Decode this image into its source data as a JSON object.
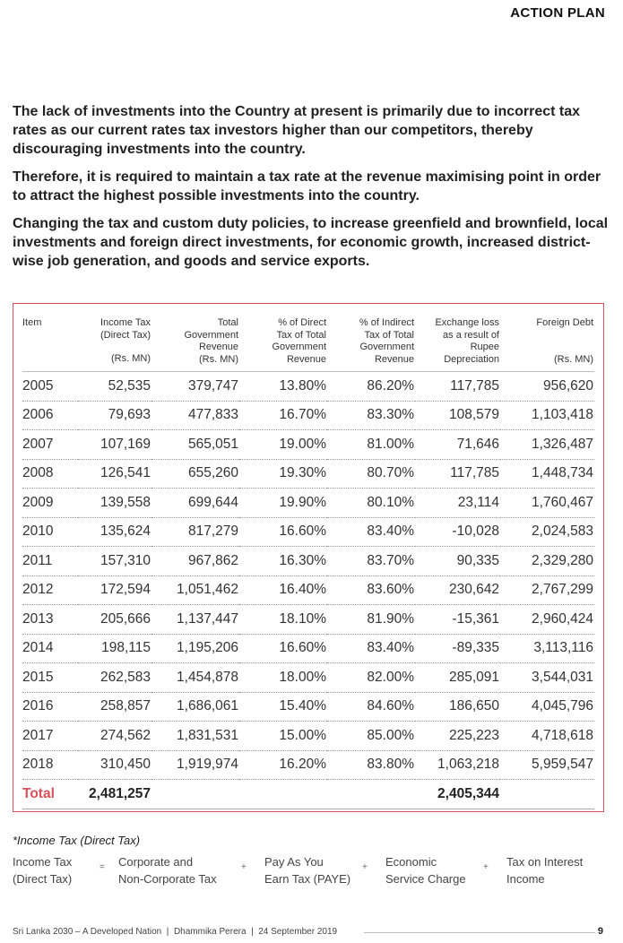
{
  "header": {
    "title": "ACTION PLAN"
  },
  "intro": {
    "paragraphs": [
      "The lack of investments into the Country at present is primarily due to incorrect tax rates as our current rates tax investors higher than our competitors, thereby discouraging investments into the country.",
      "Therefore, it is required to maintain a tax rate at the revenue maximising point in order to attract the highest possible investments into the country.",
      "Changing the tax and custom duty policies, to increase greenfield and brownfield, local investments and foreign direct investments, for economic growth, increased district-wise job generation, and goods and service exports."
    ]
  },
  "table": {
    "headers": {
      "item": "Item",
      "income_tax": [
        "Income Tax",
        "(Direct Tax)"
      ],
      "income_tax_unit": "(Rs. MN)",
      "total_revenue": [
        "Total",
        "Government",
        "Revenue"
      ],
      "total_revenue_unit": "(Rs. MN)",
      "pct_direct": [
        "% of Direct",
        "Tax of Total",
        "Government",
        "Revenue"
      ],
      "pct_indirect": [
        "% of Indirect",
        "Tax of Total",
        "Government",
        "Revenue"
      ],
      "exchange_loss": [
        "Exchange loss",
        "as a result of",
        "Rupee",
        "Depreciation"
      ],
      "foreign_debt": "Foreign Debt",
      "foreign_debt_unit": "(Rs. MN)"
    },
    "rows": [
      [
        "2005",
        "52,535",
        "379,747",
        "13.80%",
        "86.20%",
        "117,785",
        "956,620"
      ],
      [
        "2006",
        "79,693",
        "477,833",
        "16.70%",
        "83.30%",
        "108,579",
        "1,103,418"
      ],
      [
        "2007",
        "107,169",
        "565,051",
        "19.00%",
        "81.00%",
        "71,646",
        "1,326,487"
      ],
      [
        "2008",
        "126,541",
        "655,260",
        "19.30%",
        "80.70%",
        "117,785",
        "1,448,734"
      ],
      [
        "2009",
        "139,558",
        "699,644",
        "19.90%",
        "80.10%",
        "23,114",
        "1,760,467"
      ],
      [
        "2010",
        "135,624",
        "817,279",
        "16.60%",
        "83.40%",
        "-10,028",
        "2,024,583"
      ],
      [
        "2011",
        "157,310",
        "967,862",
        "16.30%",
        "83.70%",
        "90,335",
        "2,329,280"
      ],
      [
        "2012",
        "172,594",
        "1,051,462",
        "16.40%",
        "83.60%",
        "230,642",
        "2,767,299"
      ],
      [
        "2013",
        "205,666",
        "1,137,447",
        "18.10%",
        "81.90%",
        "-15,361",
        "2,960,424"
      ],
      [
        "2014",
        "198,115",
        "1,195,206",
        "16.60%",
        "83.40%",
        "-89,335",
        "3,113,116"
      ],
      [
        "2015",
        "262,583",
        "1,454,878",
        "18.00%",
        "82.00%",
        "285,091",
        "3,544,031"
      ],
      [
        "2016",
        "258,857",
        "1,686,061",
        "15.40%",
        "84.60%",
        "186,650",
        "4,045,796"
      ],
      [
        "2017",
        "274,562",
        "1,831,531",
        "15.00%",
        "85.00%",
        "225,223",
        "4,718,618"
      ],
      [
        "2018",
        "310,450",
        "1,919,974",
        "16.20%",
        "83.80%",
        "1,063,218",
        "5,959,547"
      ]
    ],
    "total": {
      "label": "Total",
      "income_tax": "2,481,257",
      "exchange_loss": "2,405,344"
    }
  },
  "note": {
    "title": "*Income Tax (Direct Tax)",
    "formula": {
      "lhs": [
        "Income Tax",
        "(Direct Tax)"
      ],
      "eq": "=",
      "t1": [
        "Corporate and",
        "Non-Corporate Tax"
      ],
      "plus1": "+",
      "t2": [
        "Pay As You",
        "Earn Tax (PAYE)"
      ],
      "plus2": "+",
      "t3": [
        "Economic",
        "Service Charge"
      ],
      "plus3": "+",
      "t4": [
        "Tax on Interest",
        "Income"
      ]
    }
  },
  "footer": {
    "text": "Sri Lanka 2030 – A Developed Nation  |  Dhammika Perera  |  24 September 2019",
    "page_number": "9"
  }
}
